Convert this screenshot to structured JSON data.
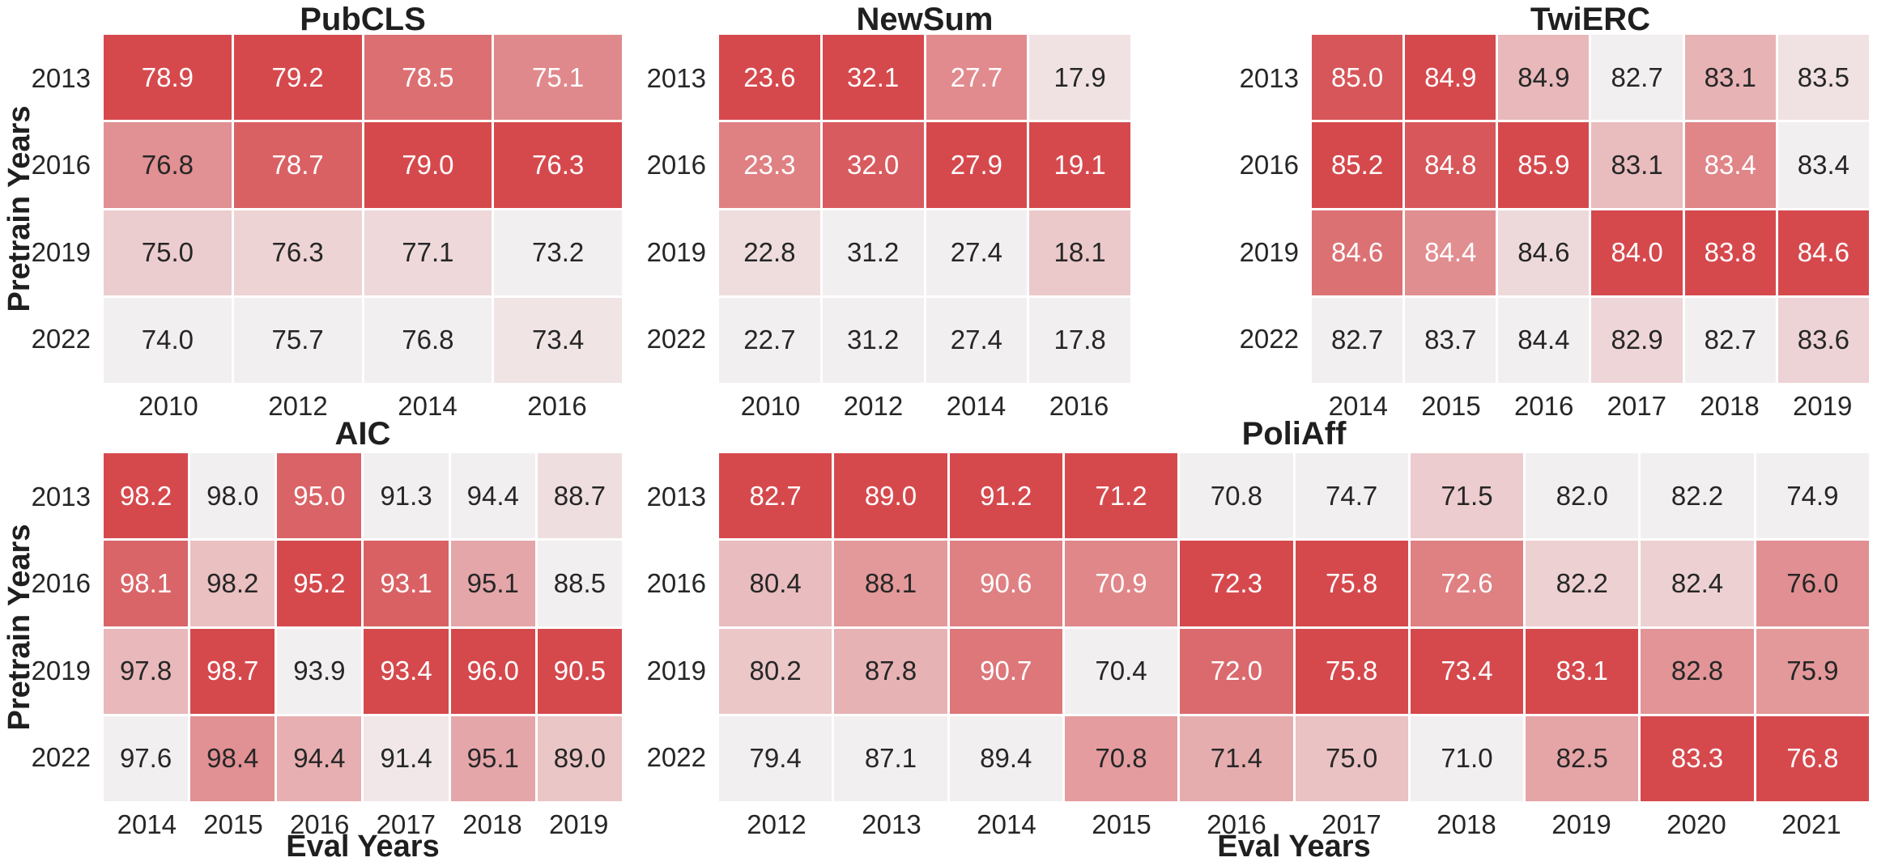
{
  "figure": {
    "ylabel": "Pretrain Years",
    "xlabel": "Eval Years",
    "colors": {
      "cmap_low": "#f2eff0",
      "cmap_high": "#d5494d",
      "cell_divider": "#ffffff",
      "text_dark": "#262626",
      "text_light": "#ffffff"
    }
  },
  "chart_data": [
    {
      "type": "heatmap",
      "title": "PubCLS",
      "ylabel": "Pretrain Years",
      "xlabel": "",
      "color_normalization": "per-column",
      "grid": true,
      "rows": [
        "2013",
        "2016",
        "2019",
        "2022"
      ],
      "cols": [
        "2010",
        "2012",
        "2014",
        "2016"
      ],
      "values": [
        [
          78.9,
          79.2,
          78.5,
          75.1
        ],
        [
          76.8,
          78.7,
          79.0,
          76.3
        ],
        [
          75.0,
          76.3,
          77.1,
          73.2
        ],
        [
          74.0,
          75.7,
          76.8,
          73.4
        ]
      ]
    },
    {
      "type": "heatmap",
      "title": "NewSum",
      "ylabel": "",
      "xlabel": "",
      "color_normalization": "per-column",
      "rows": [
        "2013",
        "2016",
        "2019",
        "2022"
      ],
      "cols": [
        "2010",
        "2012",
        "2014",
        "2016"
      ],
      "values": [
        [
          23.6,
          32.1,
          27.7,
          17.9
        ],
        [
          23.3,
          32.0,
          27.9,
          19.1
        ],
        [
          22.8,
          31.2,
          27.4,
          18.1
        ],
        [
          22.7,
          31.2,
          27.4,
          17.8
        ]
      ]
    },
    {
      "type": "heatmap",
      "title": "TwiERC",
      "ylabel": "",
      "xlabel": "",
      "color_normalization": "per-column",
      "rows": [
        "2013",
        "2016",
        "2019",
        "2022"
      ],
      "cols": [
        "2014",
        "2015",
        "2016",
        "2017",
        "2018",
        "2019"
      ],
      "values": [
        [
          85.0,
          84.9,
          84.9,
          82.7,
          83.1,
          83.5
        ],
        [
          85.2,
          84.8,
          85.9,
          83.1,
          83.4,
          83.4
        ],
        [
          84.6,
          84.4,
          84.6,
          84.0,
          83.8,
          84.6
        ],
        [
          82.7,
          83.7,
          84.4,
          82.9,
          82.7,
          83.6
        ]
      ]
    },
    {
      "type": "heatmap",
      "title": "AIC",
      "ylabel": "Pretrain Years",
      "xlabel": "Eval Years",
      "color_normalization": "per-column",
      "rows": [
        "2013",
        "2016",
        "2019",
        "2022"
      ],
      "cols": [
        "2014",
        "2015",
        "2016",
        "2017",
        "2018",
        "2019"
      ],
      "values": [
        [
          98.2,
          98.0,
          95.0,
          91.3,
          94.4,
          88.7
        ],
        [
          98.1,
          98.2,
          95.2,
          93.1,
          95.1,
          88.5
        ],
        [
          97.8,
          98.7,
          93.9,
          93.4,
          96.0,
          90.5
        ],
        [
          97.6,
          98.4,
          94.4,
          91.4,
          95.1,
          89.0
        ]
      ]
    },
    {
      "type": "heatmap",
      "title": "PoliAff",
      "ylabel": "",
      "xlabel": "Eval Years",
      "color_normalization": "per-column",
      "rows": [
        "2013",
        "2016",
        "2019",
        "2022"
      ],
      "cols": [
        "2012",
        "2013",
        "2014",
        "2015",
        "2016",
        "2017",
        "2018",
        "2019",
        "2020",
        "2021"
      ],
      "values": [
        [
          82.7,
          89.0,
          91.2,
          71.2,
          70.8,
          74.7,
          71.5,
          82.0,
          82.2,
          74.9
        ],
        [
          80.4,
          88.1,
          90.6,
          70.9,
          72.3,
          75.8,
          72.6,
          82.2,
          82.4,
          76.0
        ],
        [
          80.2,
          87.8,
          90.7,
          70.4,
          72.0,
          75.8,
          73.4,
          83.1,
          82.8,
          75.9
        ],
        [
          79.4,
          87.1,
          89.4,
          70.8,
          71.4,
          75.0,
          71.0,
          82.5,
          83.3,
          76.8
        ]
      ]
    }
  ]
}
